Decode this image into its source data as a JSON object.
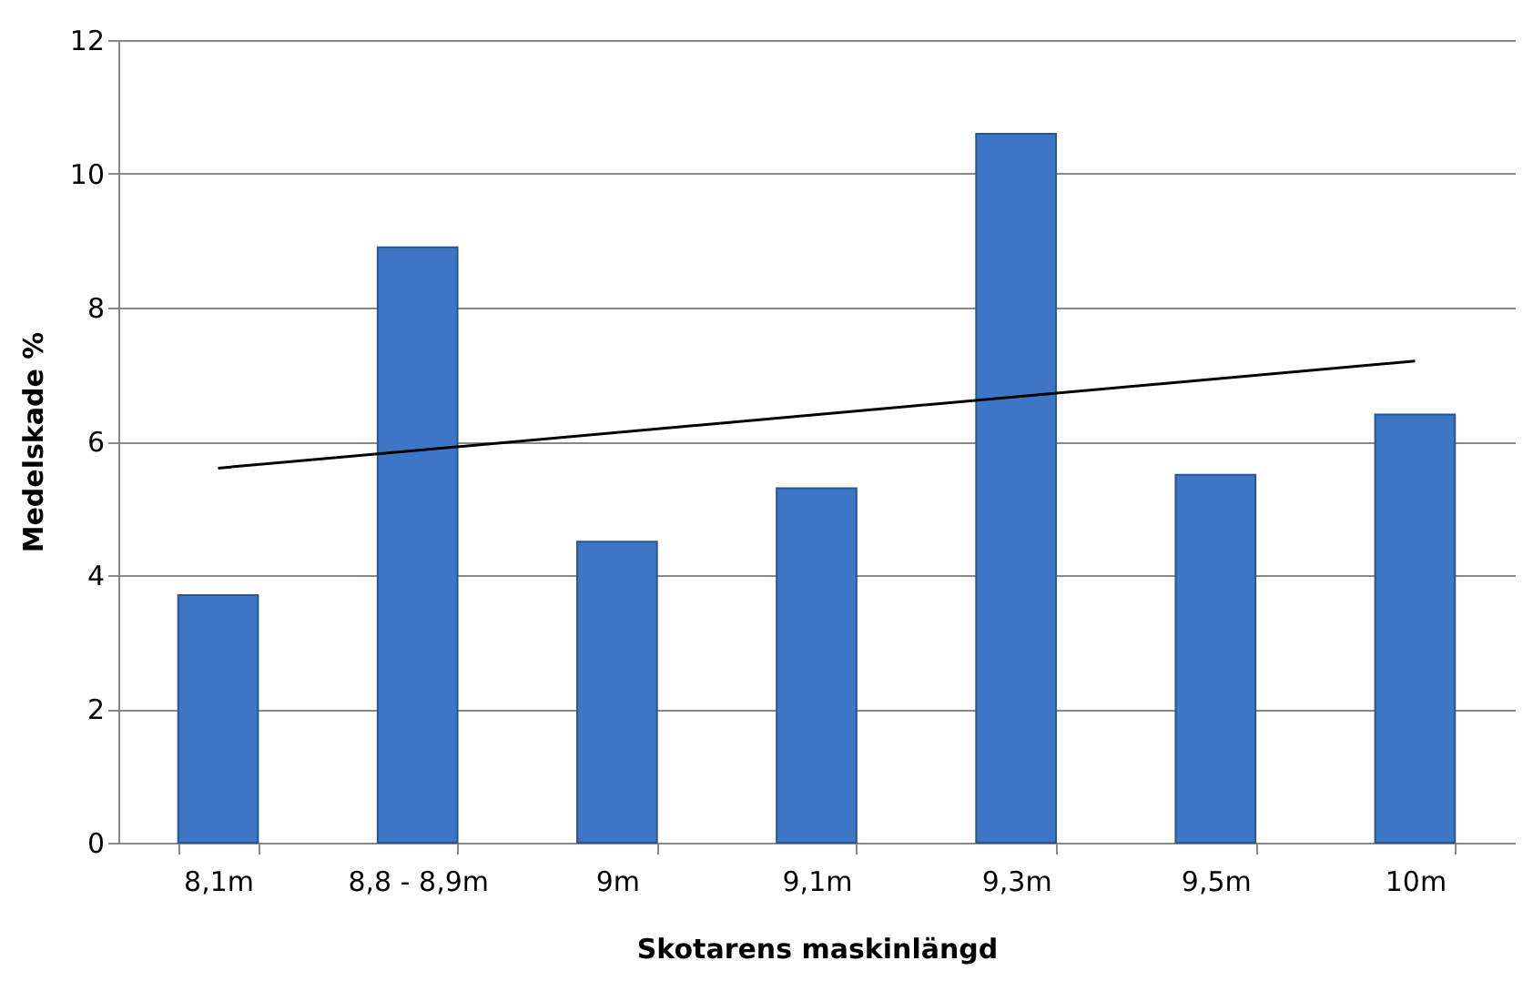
{
  "chart_data": {
    "type": "bar",
    "xlabel": "Skotarens maskinlängd",
    "ylabel": "Medelskade %",
    "categories": [
      "8,1m",
      "8,8 - 8,9m",
      "9m",
      "9,1m",
      "9,3m",
      "9,5m",
      "10m"
    ],
    "series": [
      {
        "color": "#3d76c4",
        "values": [
          3.7,
          8.9,
          4.5,
          5.3,
          10.6,
          5.5,
          6.4
        ]
      },
      {
        "type": "line",
        "color": "#000000",
        "x": [
          "8,1m",
          "10m"
        ],
        "values": [
          5.6,
          7.2
        ]
      }
    ],
    "ylim": [
      0,
      12
    ],
    "yticks": [
      0,
      2,
      4,
      6,
      8,
      10,
      12
    ],
    "grid": "y"
  }
}
